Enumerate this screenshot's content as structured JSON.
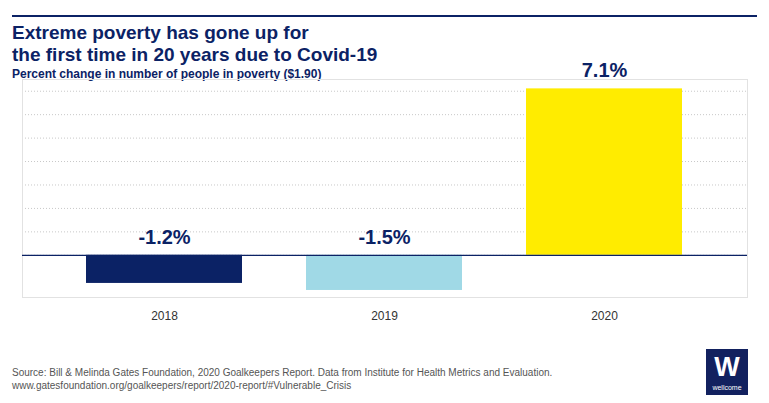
{
  "chart_data": {
    "type": "bar",
    "title": "Extreme poverty has gone up for\nthe first time in 20 years due to Covid-19",
    "subtitle": "Percent change in number of people in poverty ($1.90)",
    "categories": [
      "2018",
      "2019",
      "2020"
    ],
    "values": [
      -1.2,
      -1.5,
      7.1
    ],
    "value_labels": [
      "-1.2%",
      "-1.5%",
      "7.1%"
    ],
    "colors": [
      "#0b2265",
      "#a0d9e6",
      "#ffec00"
    ],
    "data_labels": true,
    "ylim": [
      -1.8,
      7.5
    ],
    "yticks": [
      0,
      1,
      2,
      3,
      4,
      5,
      6,
      7
    ],
    "grid": true,
    "tick_labels": "x",
    "source": [
      "Source: Bill & Melinda Gates Foundation, 2020 Goalkeepers Report. Data from Institute for Health Metrics and Evaluation.",
      "www.gatesfoundation.org/goalkeepers/report/2020-report/#Vulnerable_Crisis"
    ],
    "logo": {
      "mark": "W",
      "text": "wellcome"
    }
  }
}
